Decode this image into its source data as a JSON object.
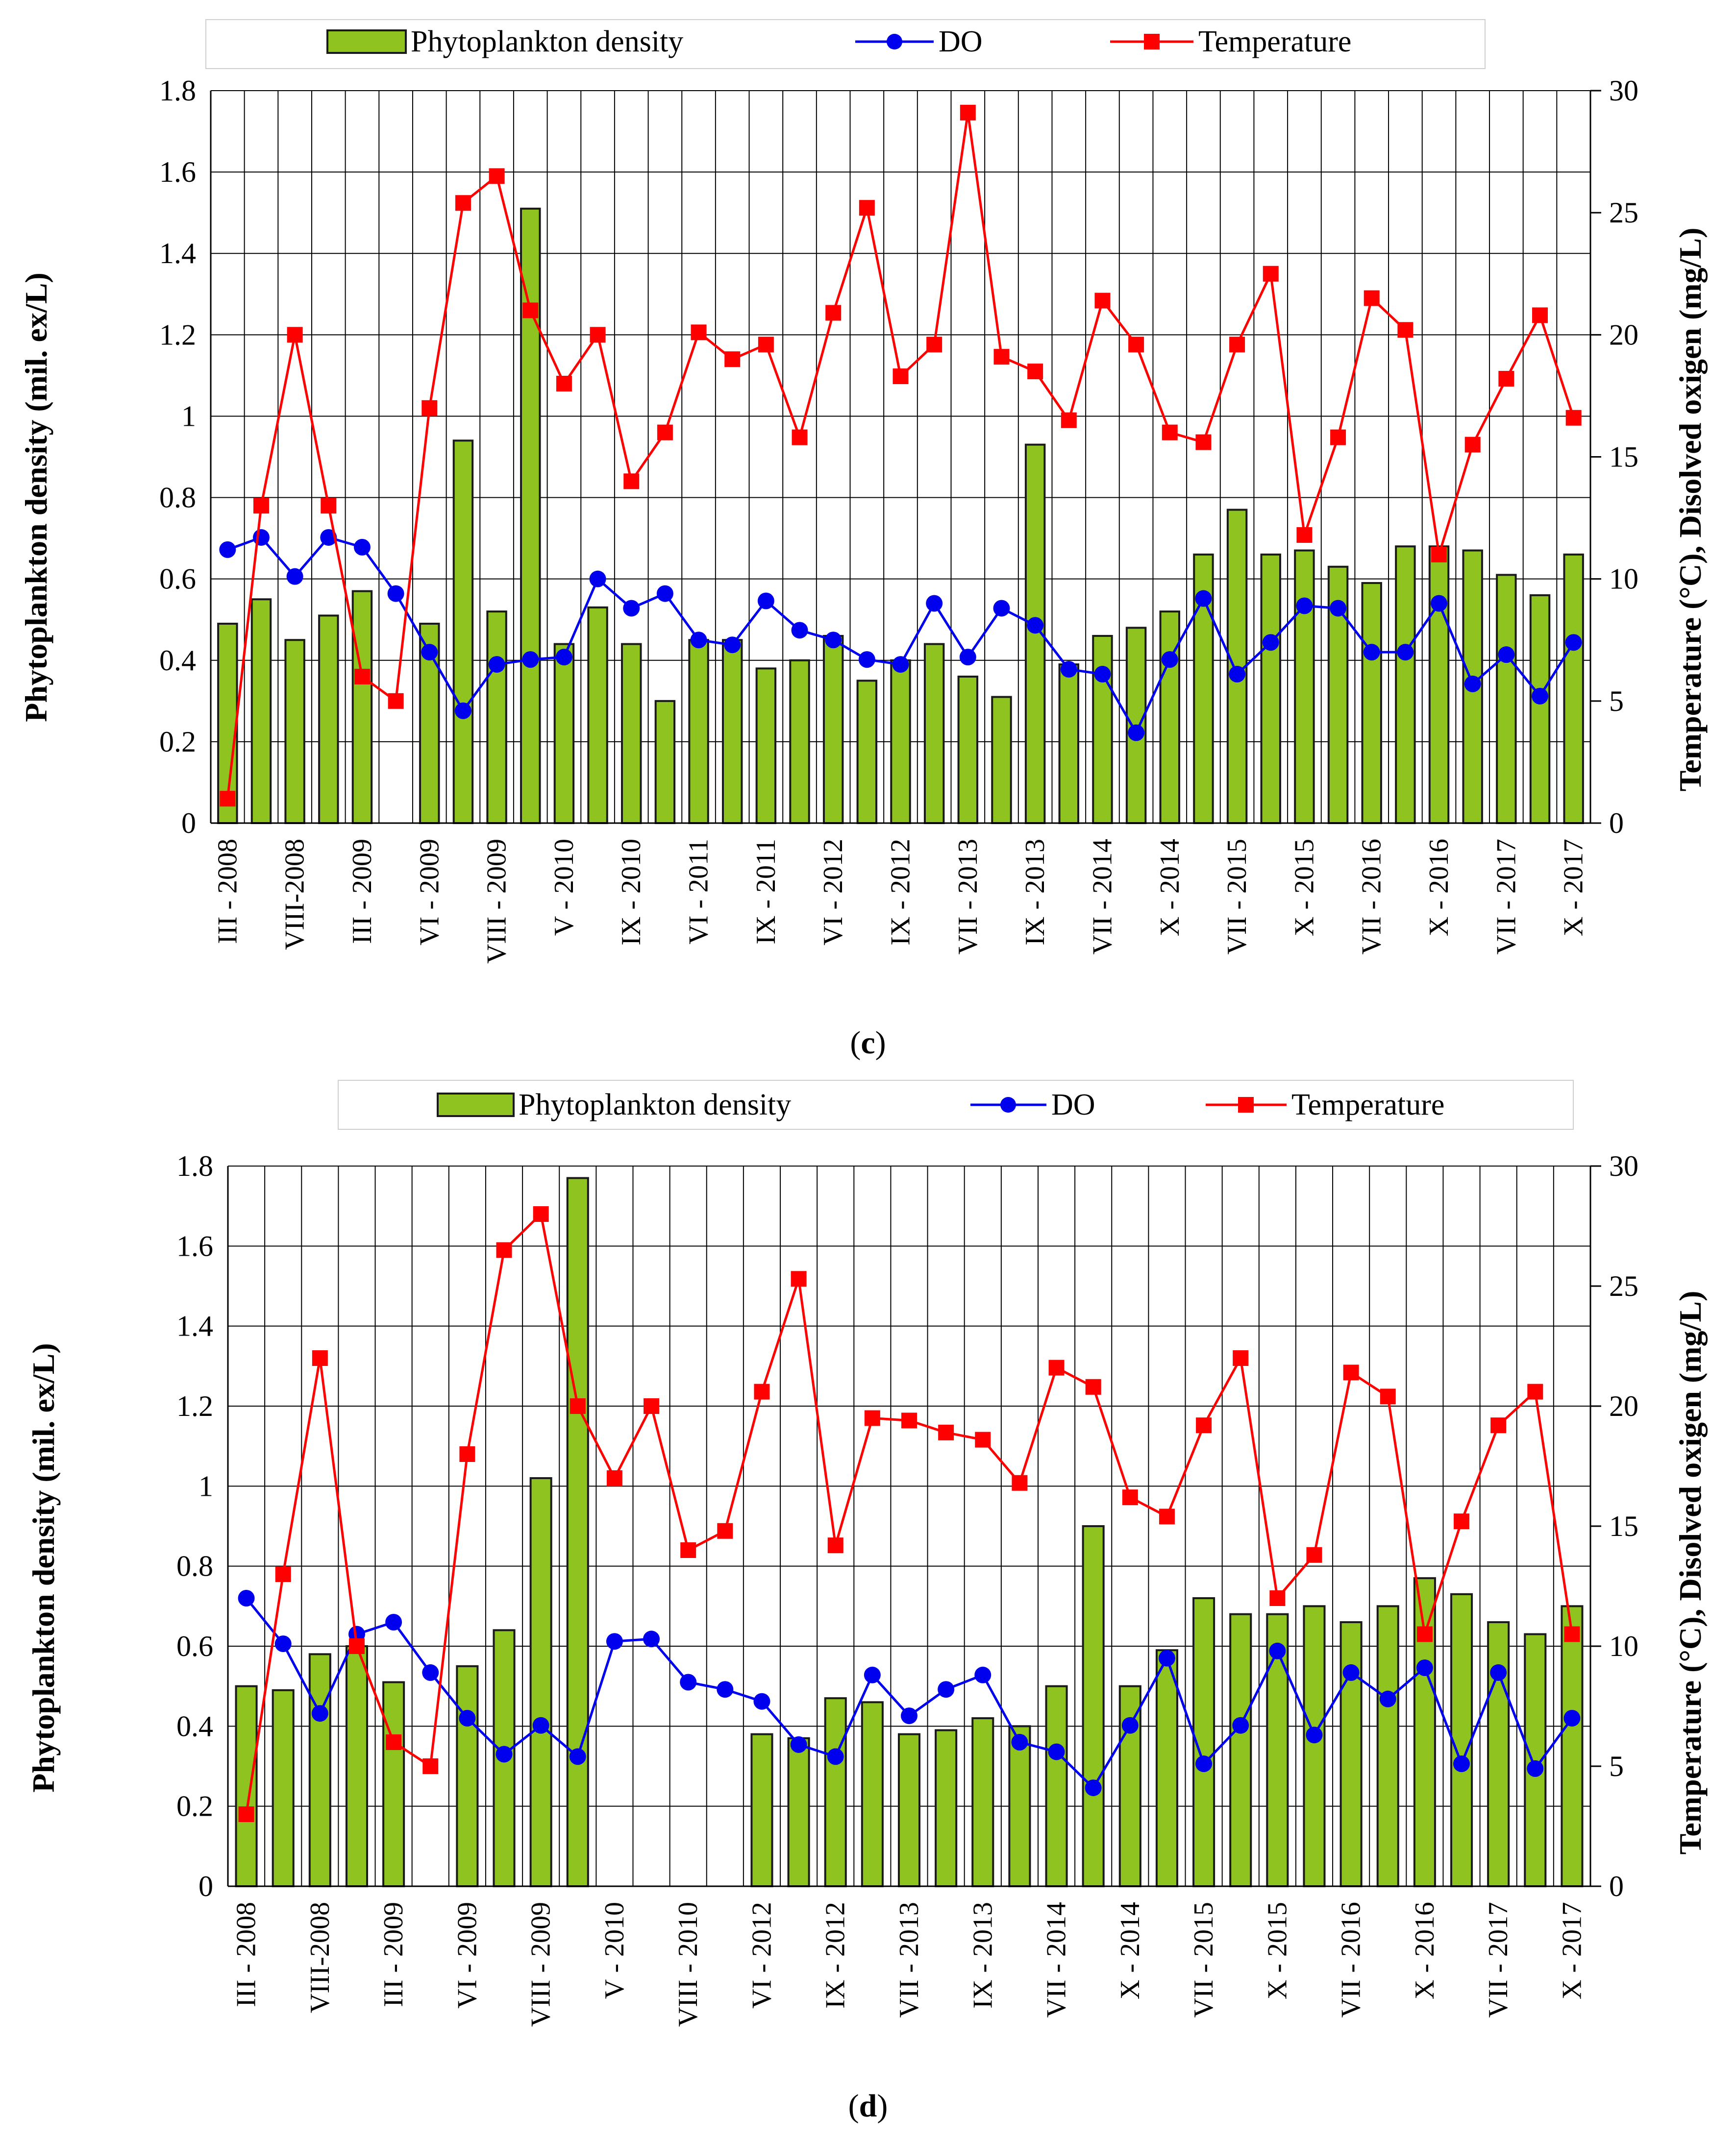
{
  "colors": {
    "bar_fill": "#8fc31f",
    "bar_stroke": "#1a1a1a",
    "do_line": "#0000ee",
    "temp_line": "#ff0000",
    "grid": "#000000"
  },
  "legend": {
    "density": "Phytoplankton density",
    "do": "DO",
    "temp": "Temperature"
  },
  "chart_data": [
    {
      "type": "bar+line",
      "panel": "(c)",
      "panel_letter": "c",
      "ylabel_left": "Phytoplankton density (mil. ex/L)",
      "ylabel_right": "Temperature (°C), Disolved oxigen (mg/L)",
      "ylim_left": [
        0,
        1.8
      ],
      "ylim_right": [
        0,
        30
      ],
      "yticks_left": [
        "0",
        "0.2",
        "0.4",
        "0.6",
        "0.8",
        "1",
        "1.2",
        "1.4",
        "1.6",
        "1.8"
      ],
      "yticks_right": [
        "0",
        "5",
        "10",
        "15",
        "20",
        "25",
        "30"
      ],
      "xtick_labels": [
        "III - 2008",
        "VIII-2008",
        "III - 2009",
        "VI - 2009",
        "VIII - 2009",
        "V - 2010",
        "IX - 2010",
        "VI - 2011",
        "IX - 2011",
        "VI - 2012",
        "IX - 2012",
        "VII - 2013",
        "IX - 2013",
        "VII - 2014",
        "X - 2014",
        "VII - 2015",
        "X - 2015",
        "VII - 2016",
        "X - 2016",
        "VII - 2017",
        "X - 2017"
      ],
      "series": [
        {
          "name": "Phytoplankton density",
          "kind": "bar",
          "axis": "left",
          "values": [
            0.49,
            0.55,
            0.45,
            0.51,
            0.57,
            null,
            0.49,
            0.94,
            0.52,
            1.51,
            0.44,
            0.53,
            0.44,
            0.3,
            0.45,
            0.45,
            0.38,
            0.4,
            0.46,
            0.35,
            0.4,
            0.44,
            0.36,
            0.31,
            0.93,
            0.39,
            0.46,
            0.48,
            0.52,
            0.66,
            0.77,
            0.66,
            0.67,
            0.63,
            0.59,
            0.68,
            0.68,
            0.67,
            0.61,
            0.56,
            0.66
          ]
        },
        {
          "name": "DO",
          "kind": "line",
          "axis": "right",
          "values": [
            11.2,
            11.7,
            10.1,
            11.7,
            11.3,
            9.4,
            7.0,
            4.6,
            6.5,
            6.7,
            6.8,
            10.0,
            8.8,
            9.4,
            7.5,
            7.3,
            9.1,
            7.9,
            7.5,
            6.7,
            6.5,
            9.0,
            6.8,
            8.8,
            8.1,
            6.3,
            6.1,
            3.7,
            6.7,
            9.2,
            6.1,
            7.4,
            8.9,
            8.8,
            7.0,
            7.0,
            9.0,
            5.7,
            6.9,
            5.2,
            7.4
          ]
        },
        {
          "name": "Temperature",
          "kind": "line",
          "axis": "right",
          "values": [
            1.0,
            13.0,
            20.0,
            13.0,
            6.0,
            5.0,
            17.0,
            25.4,
            26.5,
            21.0,
            18.0,
            20.0,
            14.0,
            16.0,
            20.1,
            19.0,
            19.6,
            15.8,
            20.9,
            25.2,
            18.3,
            19.6,
            29.1,
            19.1,
            18.5,
            16.5,
            21.4,
            19.6,
            16.0,
            15.6,
            19.6,
            22.5,
            11.8,
            15.8,
            21.5,
            20.2,
            11.0,
            15.5,
            18.2,
            20.8,
            16.6
          ]
        }
      ]
    },
    {
      "type": "bar+line",
      "panel": "(d)",
      "panel_letter": "d",
      "ylabel_left": "Phytoplankton density (mil. ex/L)",
      "ylabel_right": "Temperature (°C), Disolved oxigen (mg/L)",
      "ylim_left": [
        0,
        1.8
      ],
      "ylim_right": [
        0,
        30
      ],
      "yticks_left": [
        "0",
        "0.2",
        "0.4",
        "0.6",
        "0.8",
        "1",
        "1.2",
        "1.4",
        "1.6",
        "1.8"
      ],
      "yticks_right": [
        "0",
        "5",
        "10",
        "15",
        "20",
        "25",
        "30"
      ],
      "xtick_labels": [
        "III - 2008",
        "VIII-2008",
        "III - 2009",
        "VI - 2009",
        "VIII - 2009",
        "V - 2010",
        "VIII - 2010",
        "VI - 2012",
        "IX - 2012",
        "VII - 2013",
        "IX - 2013",
        "VII - 2014",
        "X - 2014",
        "VII - 2015",
        "X - 2015",
        "VII - 2016",
        "X - 2016",
        "VII - 2017",
        "X - 2017"
      ],
      "series": [
        {
          "name": "Phytoplankton density",
          "kind": "bar",
          "axis": "left",
          "values": [
            0.5,
            0.49,
            0.58,
            0.6,
            0.51,
            null,
            0.55,
            0.64,
            1.02,
            1.77,
            null,
            null,
            null,
            null,
            0.38,
            0.37,
            0.47,
            0.46,
            0.38,
            0.39,
            0.42,
            0.4,
            0.5,
            0.9,
            0.5,
            0.59,
            0.72,
            0.68,
            0.68,
            0.7,
            0.66,
            0.7,
            0.77,
            0.73,
            0.66,
            0.63,
            0.7
          ]
        },
        {
          "name": "DO",
          "kind": "line",
          "axis": "right",
          "values": [
            12.0,
            10.1,
            7.2,
            10.5,
            11.0,
            8.9,
            7.0,
            5.5,
            6.7,
            5.4,
            10.2,
            10.3,
            8.5,
            8.2,
            7.7,
            5.9,
            5.4,
            8.8,
            7.1,
            8.2,
            8.8,
            6.0,
            5.6,
            4.1,
            6.7,
            9.5,
            5.1,
            6.7,
            9.8,
            6.3,
            8.9,
            7.8,
            9.1,
            5.1,
            8.9,
            4.9,
            7.0
          ]
        },
        {
          "name": "Temperature",
          "kind": "line",
          "axis": "right",
          "values": [
            3.0,
            13.0,
            22.0,
            10.0,
            6.0,
            5.0,
            18.0,
            26.5,
            28.0,
            20.0,
            17.0,
            20.0,
            14.0,
            14.8,
            20.6,
            25.3,
            14.2,
            19.5,
            19.4,
            18.9,
            18.6,
            16.8,
            21.6,
            20.8,
            16.2,
            15.4,
            19.2,
            22.0,
            12.0,
            13.8,
            21.4,
            20.4,
            10.5,
            15.2,
            19.2,
            20.6,
            10.5
          ]
        }
      ]
    }
  ]
}
